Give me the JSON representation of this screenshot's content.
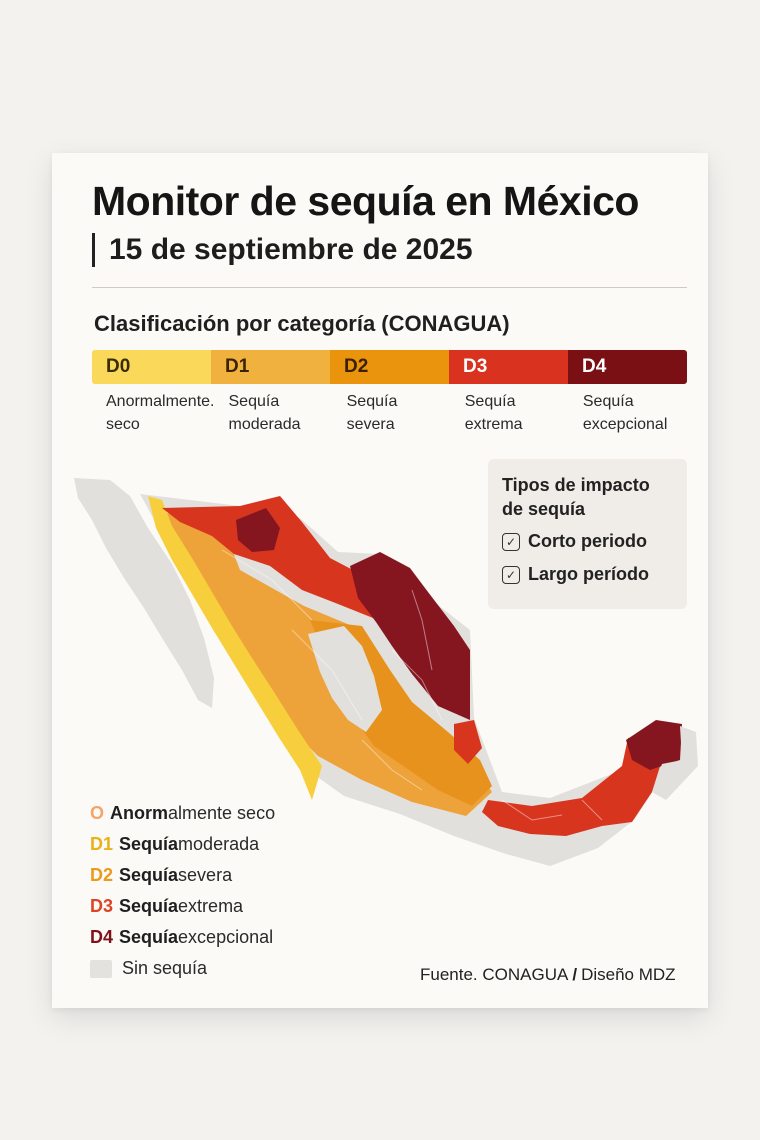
{
  "header": {
    "title": "Monitor de sequía en México",
    "date": "15 de septiembre de 2025"
  },
  "classification": {
    "title": "Clasificación por categoría (CONAGUA)",
    "categories": [
      {
        "code": "D0",
        "label_line1": "Anormalmente.",
        "label_line2": "seco",
        "color": "#f9d85a",
        "text_color": "#3a2c00"
      },
      {
        "code": "D1",
        "label_line1": "Sequía",
        "label_line2": "moderada",
        "color": "#f1b13f",
        "text_color": "#3a2400"
      },
      {
        "code": "D2",
        "label_line1": "Sequía",
        "label_line2": "severa",
        "color": "#e9940c",
        "text_color": "#3a1f00"
      },
      {
        "code": "D3",
        "label_line1": "Sequía",
        "label_line2": "extrema",
        "color": "#d9331f",
        "text_color": "#ffffff"
      },
      {
        "code": "D4",
        "label_line1": "Sequía",
        "label_line2": "excepcional",
        "color": "#7a0f14",
        "text_color": "#ffffff"
      }
    ]
  },
  "impact": {
    "title": "Tipos de impacto de sequía",
    "items": [
      {
        "label": "Corto periodo",
        "icon": "checkbox-icon"
      },
      {
        "label": "Largo período",
        "icon": "checkbox-icon"
      }
    ]
  },
  "legend": {
    "items": [
      {
        "code": "O",
        "bold": "Anorm",
        "rest": "almente seco",
        "color": "#f4a46a"
      },
      {
        "code": "D1",
        "bold": "Sequía",
        "rest": " moderada",
        "color": "#e8b219"
      },
      {
        "code": "D2",
        "bold": "Sequía",
        "rest": " severa",
        "color": "#eb9a1c"
      },
      {
        "code": "D3",
        "bold": "Sequía",
        "rest": " extrema",
        "color": "#dc4523"
      },
      {
        "code": "D4",
        "bold": "Sequía",
        "rest": " excepcional",
        "color": "#7e1218"
      }
    ],
    "none_label": "Sin sequía",
    "none_color": "#e4e2de"
  },
  "map": {
    "colors": {
      "none": "#e2e0dc",
      "d0": "#f7cf3c",
      "d1": "#eda23a",
      "d2": "#e8921e",
      "d3": "#d8351f",
      "d4": "#851620"
    }
  },
  "source": {
    "prefix": "Fuente. CONAGUA",
    "separator": "/",
    "credit": "Diseño MDZ"
  }
}
